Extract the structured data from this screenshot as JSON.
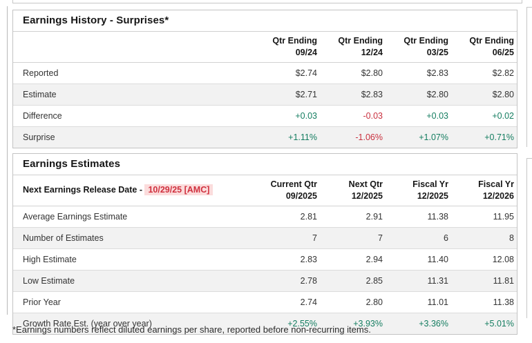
{
  "page": {
    "footnote": "*Earnings numbers reflect diluted earnings per share, reported before non-recurring items."
  },
  "colors": {
    "positive_green": "#147d60",
    "negative_red": "#c9303e",
    "release_date_red": "#d0313f",
    "release_date_highlight": "#fbdcdc",
    "row_stripe": "#f2f2f2"
  },
  "earnings_history": {
    "title": "Earnings History - Surprises*",
    "columns": [
      [
        "Qtr Ending",
        "09/24"
      ],
      [
        "Qtr Ending",
        "12/24"
      ],
      [
        "Qtr Ending",
        "03/25"
      ],
      [
        "Qtr Ending",
        "06/25"
      ]
    ],
    "rows": [
      {
        "label": "Reported",
        "values": [
          "$2.74",
          "$2.80",
          "$2.83",
          "$2.82"
        ],
        "tones": [
          "plain",
          "plain",
          "plain",
          "plain"
        ]
      },
      {
        "label": "Estimate",
        "values": [
          "$2.71",
          "$2.83",
          "$2.80",
          "$2.80"
        ],
        "tones": [
          "plain",
          "plain",
          "plain",
          "plain"
        ]
      },
      {
        "label": "Difference",
        "values": [
          "+0.03",
          "-0.03",
          "+0.03",
          "+0.02"
        ],
        "tones": [
          "green",
          "red",
          "green",
          "green"
        ]
      },
      {
        "label": "Surprise",
        "values": [
          "+1.11%",
          "-1.06%",
          "+1.07%",
          "+0.71%"
        ],
        "tones": [
          "green",
          "red",
          "green",
          "green"
        ]
      }
    ]
  },
  "earnings_estimates": {
    "title": "Earnings Estimates",
    "release_label": "Next Earnings Release Date - ",
    "release_date": "10/29/25 [AMC]",
    "columns": [
      [
        "Current Qtr",
        "09/2025"
      ],
      [
        "Next Qtr",
        "12/2025"
      ],
      [
        "Fiscal Yr",
        "12/2025"
      ],
      [
        "Fiscal Yr",
        "12/2026"
      ]
    ],
    "rows": [
      {
        "label": "Average Earnings Estimate",
        "values": [
          "2.81",
          "2.91",
          "11.38",
          "11.95"
        ],
        "tones": [
          "plain",
          "plain",
          "plain",
          "plain"
        ]
      },
      {
        "label": "Number of Estimates",
        "values": [
          "7",
          "7",
          "6",
          "8"
        ],
        "tones": [
          "plain",
          "plain",
          "plain",
          "plain"
        ]
      },
      {
        "label": "High Estimate",
        "values": [
          "2.83",
          "2.94",
          "11.40",
          "12.08"
        ],
        "tones": [
          "plain",
          "plain",
          "plain",
          "plain"
        ]
      },
      {
        "label": "Low Estimate",
        "values": [
          "2.78",
          "2.85",
          "11.31",
          "11.81"
        ],
        "tones": [
          "plain",
          "plain",
          "plain",
          "plain"
        ]
      },
      {
        "label": "Prior Year",
        "values": [
          "2.74",
          "2.80",
          "11.01",
          "11.38"
        ],
        "tones": [
          "plain",
          "plain",
          "plain",
          "plain"
        ]
      },
      {
        "label": "Growth Rate Est. (year over year)",
        "values": [
          "+2.55%",
          "+3.93%",
          "+3.36%",
          "+5.01%"
        ],
        "tones": [
          "green",
          "green",
          "green",
          "green"
        ]
      }
    ]
  }
}
